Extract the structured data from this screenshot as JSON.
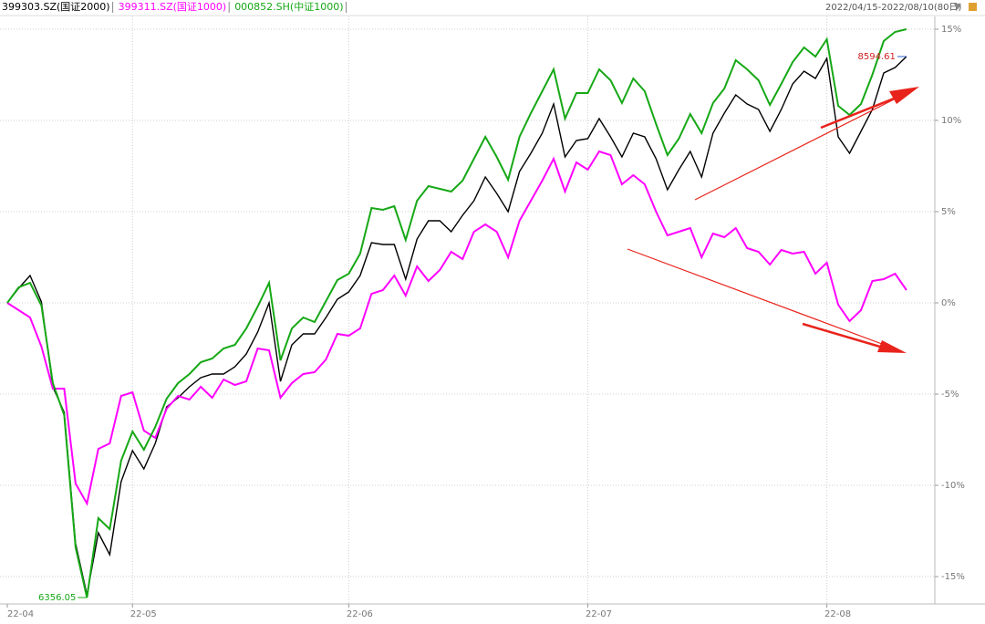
{
  "chart_data": {
    "type": "line",
    "date_range": "2022/04/15-2022/08/10(80日)",
    "categories": [
      "22-04",
      null,
      null,
      null,
      null,
      null,
      null,
      null,
      null,
      null,
      null,
      "22-05",
      null,
      null,
      null,
      null,
      null,
      null,
      null,
      null,
      null,
      null,
      null,
      null,
      null,
      null,
      null,
      null,
      null,
      null,
      "22-06",
      null,
      null,
      null,
      null,
      null,
      null,
      null,
      null,
      null,
      null,
      null,
      null,
      null,
      null,
      null,
      null,
      null,
      null,
      null,
      null,
      "22-07",
      null,
      null,
      null,
      null,
      null,
      null,
      null,
      null,
      null,
      null,
      null,
      null,
      null,
      null,
      null,
      null,
      null,
      null,
      null,
      null,
      "22-08",
      null,
      null,
      null,
      null,
      null,
      null,
      null
    ],
    "series": [
      {
        "name": "399303.SZ(国证2000)",
        "color": "#000000",
        "values": [
          0,
          0.8,
          1.5,
          0.05,
          -4.6,
          -6.0,
          -13.2,
          -16.0,
          -12.6,
          -13.8,
          -9.8,
          -8.1,
          -9.1,
          -7.7,
          -5.7,
          -5.2,
          -4.6,
          -4.1,
          -3.9,
          -3.9,
          -3.5,
          -2.8,
          -1.6,
          0.0,
          -4.3,
          -2.3,
          -1.7,
          -1.7,
          -0.8,
          0.2,
          0.6,
          1.5,
          3.3,
          3.2,
          3.2,
          1.3,
          3.5,
          4.5,
          4.5,
          3.9,
          4.8,
          5.6,
          6.9,
          6.0,
          5.0,
          7.2,
          8.2,
          9.3,
          10.9,
          8.0,
          8.9,
          9.0,
          10.1,
          9.1,
          8.0,
          9.3,
          9.1,
          7.9,
          6.2,
          7.3,
          8.3,
          6.9,
          9.3,
          10.4,
          11.4,
          10.9,
          10.6,
          9.4,
          10.6,
          12.0,
          12.7,
          12.3,
          13.4,
          9.1,
          8.2,
          9.4,
          10.6,
          12.6,
          12.9,
          13.5
        ]
      },
      {
        "name": "399311.SZ(国证1000)",
        "color": "#ff00ff",
        "values": [
          0,
          -0.4,
          -0.8,
          -2.4,
          -4.7,
          -4.7,
          -9.9,
          -11.0,
          -8.0,
          -7.7,
          -5.1,
          -4.9,
          -7.0,
          -7.4,
          -5.8,
          -5.1,
          -5.3,
          -4.6,
          -5.2,
          -4.2,
          -4.5,
          -4.3,
          -2.5,
          -2.6,
          -5.2,
          -4.4,
          -3.9,
          -3.8,
          -3.1,
          -1.7,
          -1.8,
          -1.4,
          0.5,
          0.7,
          1.5,
          0.4,
          2.0,
          1.2,
          1.8,
          2.8,
          2.4,
          3.9,
          4.3,
          3.9,
          2.5,
          4.5,
          5.6,
          6.7,
          7.9,
          6.1,
          7.7,
          7.3,
          8.3,
          8.1,
          6.5,
          7.0,
          6.5,
          5.0,
          3.7,
          3.9,
          4.1,
          2.5,
          3.8,
          3.6,
          4.1,
          3.0,
          2.8,
          2.1,
          2.9,
          2.7,
          2.8,
          1.6,
          2.2,
          -0.1,
          -1.0,
          -0.4,
          1.2,
          1.3,
          1.6,
          0.7
        ]
      },
      {
        "name": "000852.SH(中证1000)",
        "color": "#16a816",
        "values": [
          0,
          0.85,
          1.1,
          -0.15,
          -4.4,
          -6.15,
          -13.4,
          -16.15,
          -11.8,
          -12.4,
          -8.65,
          -7.05,
          -8.05,
          -6.8,
          -5.25,
          -4.4,
          -3.9,
          -3.25,
          -3.05,
          -2.5,
          -2.3,
          -1.4,
          -0.2,
          1.1,
          -3.15,
          -1.4,
          -0.8,
          -1.05,
          0.1,
          1.25,
          1.6,
          2.7,
          5.2,
          5.1,
          5.3,
          3.45,
          5.6,
          6.4,
          6.25,
          6.1,
          6.7,
          7.9,
          9.1,
          8.0,
          6.75,
          9.1,
          10.4,
          11.6,
          12.8,
          10.1,
          11.5,
          11.5,
          12.8,
          12.2,
          10.95,
          12.3,
          11.6,
          9.8,
          8.1,
          9.0,
          10.35,
          9.3,
          10.95,
          11.75,
          13.3,
          12.8,
          12.2,
          10.85,
          12.0,
          13.2,
          14.0,
          13.5,
          14.45,
          10.8,
          10.3,
          10.9,
          12.5,
          14.35,
          14.85,
          15.0
        ]
      }
    ],
    "annotations": [
      "8594.61",
      "6356.05"
    ],
    "ylim": [
      -16.5,
      15.7
    ],
    "yticks": [
      {
        "value": 15,
        "label": "15%"
      },
      {
        "value": 10,
        "label": "10%"
      },
      {
        "value": 5,
        "label": "5%"
      },
      {
        "value": 0,
        "label": "0%"
      },
      {
        "value": -5,
        "label": "-5%"
      },
      {
        "value": -10,
        "label": "-10%"
      },
      {
        "value": -15,
        "label": "-15%"
      }
    ],
    "grid": true
  }
}
